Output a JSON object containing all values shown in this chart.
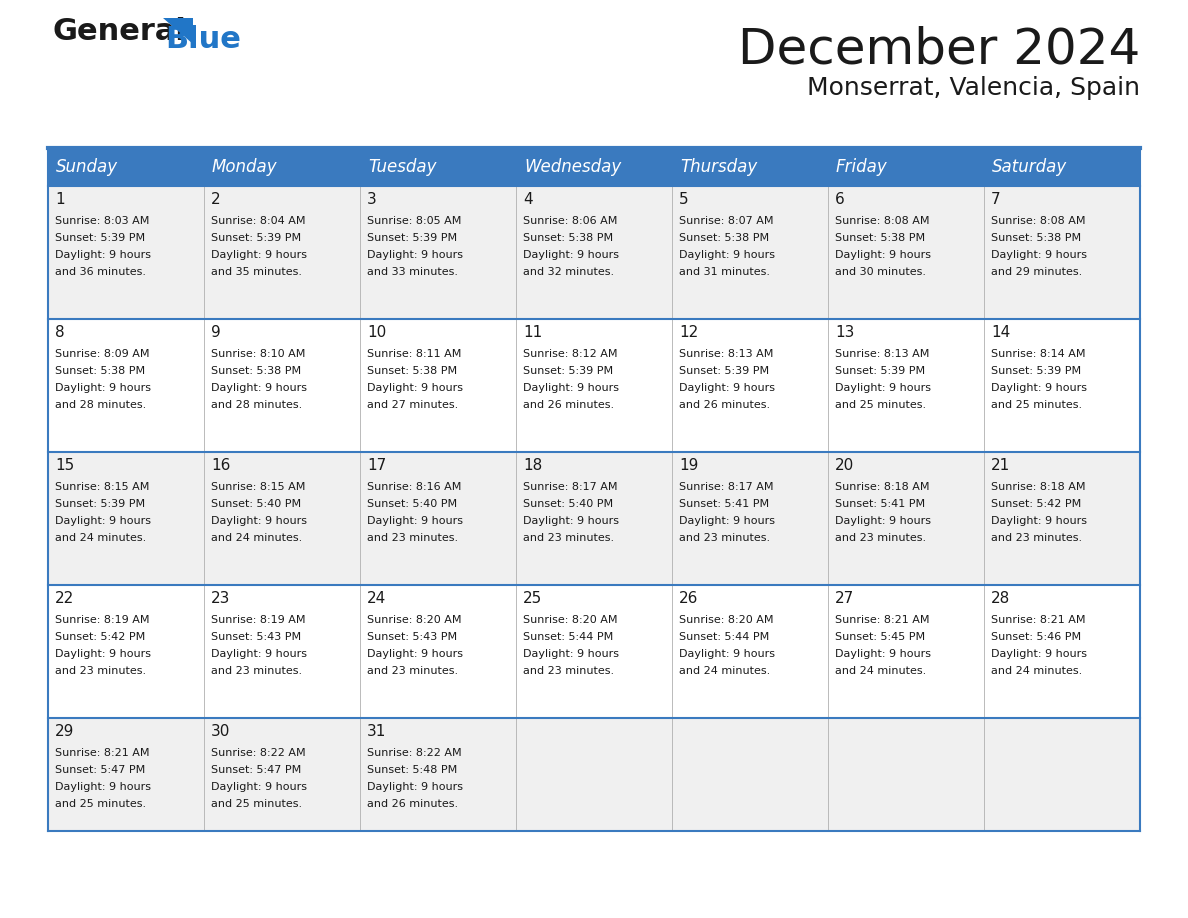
{
  "title": "December 2024",
  "subtitle": "Monserrat, Valencia, Spain",
  "header_bg": "#ffffff",
  "header_color": "#3a7abf",
  "header_text_color": "#ffffff",
  "cell_bg_odd": "#f0f0f0",
  "cell_bg_even": "#ffffff",
  "border_color": "#3a7abf",
  "text_color": "#1a1a1a",
  "day_names": [
    "Sunday",
    "Monday",
    "Tuesday",
    "Wednesday",
    "Thursday",
    "Friday",
    "Saturday"
  ],
  "weeks": [
    [
      {
        "day": 1,
        "sunrise": "8:03 AM",
        "sunset": "5:39 PM",
        "dl_mins": "36"
      },
      {
        "day": 2,
        "sunrise": "8:04 AM",
        "sunset": "5:39 PM",
        "dl_mins": "35"
      },
      {
        "day": 3,
        "sunrise": "8:05 AM",
        "sunset": "5:39 PM",
        "dl_mins": "33"
      },
      {
        "day": 4,
        "sunrise": "8:06 AM",
        "sunset": "5:38 PM",
        "dl_mins": "32"
      },
      {
        "day": 5,
        "sunrise": "8:07 AM",
        "sunset": "5:38 PM",
        "dl_mins": "31"
      },
      {
        "day": 6,
        "sunrise": "8:08 AM",
        "sunset": "5:38 PM",
        "dl_mins": "30"
      },
      {
        "day": 7,
        "sunrise": "8:08 AM",
        "sunset": "5:38 PM",
        "dl_mins": "29"
      }
    ],
    [
      {
        "day": 8,
        "sunrise": "8:09 AM",
        "sunset": "5:38 PM",
        "dl_mins": "28"
      },
      {
        "day": 9,
        "sunrise": "8:10 AM",
        "sunset": "5:38 PM",
        "dl_mins": "28"
      },
      {
        "day": 10,
        "sunrise": "8:11 AM",
        "sunset": "5:38 PM",
        "dl_mins": "27"
      },
      {
        "day": 11,
        "sunrise": "8:12 AM",
        "sunset": "5:39 PM",
        "dl_mins": "26"
      },
      {
        "day": 12,
        "sunrise": "8:13 AM",
        "sunset": "5:39 PM",
        "dl_mins": "26"
      },
      {
        "day": 13,
        "sunrise": "8:13 AM",
        "sunset": "5:39 PM",
        "dl_mins": "25"
      },
      {
        "day": 14,
        "sunrise": "8:14 AM",
        "sunset": "5:39 PM",
        "dl_mins": "25"
      }
    ],
    [
      {
        "day": 15,
        "sunrise": "8:15 AM",
        "sunset": "5:39 PM",
        "dl_mins": "24"
      },
      {
        "day": 16,
        "sunrise": "8:15 AM",
        "sunset": "5:40 PM",
        "dl_mins": "24"
      },
      {
        "day": 17,
        "sunrise": "8:16 AM",
        "sunset": "5:40 PM",
        "dl_mins": "23"
      },
      {
        "day": 18,
        "sunrise": "8:17 AM",
        "sunset": "5:40 PM",
        "dl_mins": "23"
      },
      {
        "day": 19,
        "sunrise": "8:17 AM",
        "sunset": "5:41 PM",
        "dl_mins": "23"
      },
      {
        "day": 20,
        "sunrise": "8:18 AM",
        "sunset": "5:41 PM",
        "dl_mins": "23"
      },
      {
        "day": 21,
        "sunrise": "8:18 AM",
        "sunset": "5:42 PM",
        "dl_mins": "23"
      }
    ],
    [
      {
        "day": 22,
        "sunrise": "8:19 AM",
        "sunset": "5:42 PM",
        "dl_mins": "23"
      },
      {
        "day": 23,
        "sunrise": "8:19 AM",
        "sunset": "5:43 PM",
        "dl_mins": "23"
      },
      {
        "day": 24,
        "sunrise": "8:20 AM",
        "sunset": "5:43 PM",
        "dl_mins": "23"
      },
      {
        "day": 25,
        "sunrise": "8:20 AM",
        "sunset": "5:44 PM",
        "dl_mins": "23"
      },
      {
        "day": 26,
        "sunrise": "8:20 AM",
        "sunset": "5:44 PM",
        "dl_mins": "24"
      },
      {
        "day": 27,
        "sunrise": "8:21 AM",
        "sunset": "5:45 PM",
        "dl_mins": "24"
      },
      {
        "day": 28,
        "sunrise": "8:21 AM",
        "sunset": "5:46 PM",
        "dl_mins": "24"
      }
    ],
    [
      {
        "day": 29,
        "sunrise": "8:21 AM",
        "sunset": "5:47 PM",
        "dl_mins": "25"
      },
      {
        "day": 30,
        "sunrise": "8:22 AM",
        "sunset": "5:47 PM",
        "dl_mins": "25"
      },
      {
        "day": 31,
        "sunrise": "8:22 AM",
        "sunset": "5:48 PM",
        "dl_mins": "26"
      },
      null,
      null,
      null,
      null
    ]
  ],
  "logo_general_color": "#1a1a1a",
  "logo_blue_color": "#2176c7",
  "logo_triangle_color": "#2176c7",
  "title_fontsize": 36,
  "subtitle_fontsize": 18,
  "dayname_fontsize": 12,
  "daynum_fontsize": 11,
  "cell_fontsize": 8
}
